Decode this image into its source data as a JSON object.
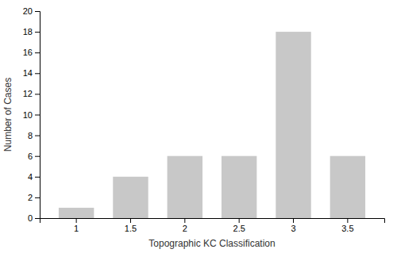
{
  "chart_data": {
    "type": "bar",
    "xlabel": "Topographic KC Classification",
    "ylabel": "Number of Cases",
    "categories": [
      "1",
      "1.5",
      "2",
      "2.5",
      "3",
      "3.5"
    ],
    "values": [
      1,
      4,
      6,
      6,
      18,
      6
    ],
    "color": "#c8c8c8",
    "ylim": [
      0,
      20
    ],
    "yticks": [
      0,
      2,
      4,
      6,
      8,
      10,
      12,
      14,
      16,
      18,
      20
    ],
    "grid": false
  }
}
